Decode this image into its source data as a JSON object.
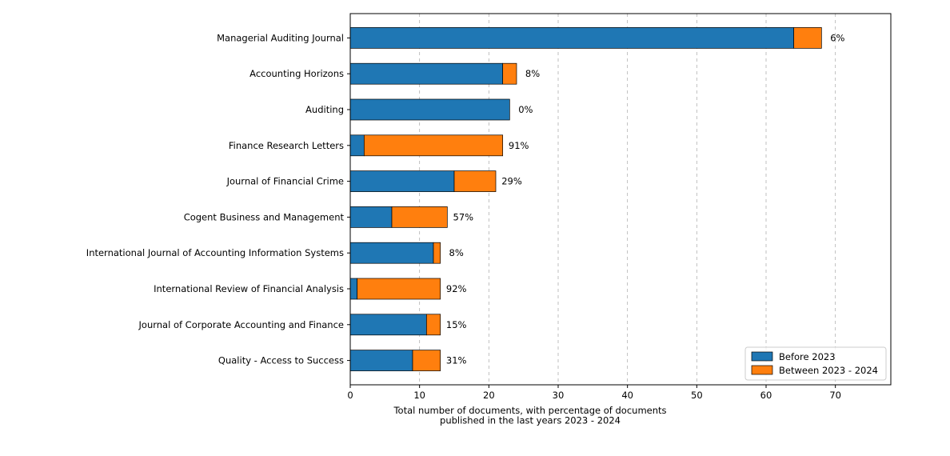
{
  "chart_data": {
    "type": "bar",
    "orientation": "horizontal",
    "stacked": true,
    "categories": [
      "Managerial Auditing Journal",
      "Accounting Horizons",
      "Auditing",
      "Finance Research Letters",
      "Journal of Financial Crime",
      "Cogent Business and Management",
      "International Journal of Accounting Information Systems",
      "International Review of Financial Analysis",
      "Journal of Corporate Accounting and Finance",
      "Quality - Access to Success"
    ],
    "series": [
      {
        "name": "Before 2023",
        "color": "#1f77b4",
        "values": [
          64,
          22,
          23,
          2,
          15,
          6,
          12,
          1,
          11,
          9
        ]
      },
      {
        "name": "Between 2023 - 2024",
        "color": "#ff7f0e",
        "values": [
          4,
          2,
          0,
          20,
          6,
          8,
          1,
          12,
          2,
          4
        ]
      }
    ],
    "data_labels": [
      "6%",
      "8%",
      "0%",
      "91%",
      "29%",
      "57%",
      "8%",
      "92%",
      "15%",
      "31%"
    ],
    "xlabel": "Total number of documents, with percentage of documents\npublished in the last years 2023 - 2024",
    "ylabel": "",
    "xlim": [
      0,
      78
    ],
    "xticks": [
      0,
      10,
      20,
      30,
      40,
      50,
      60,
      70
    ],
    "grid": "x, dashed",
    "legend_position": "lower-right"
  }
}
